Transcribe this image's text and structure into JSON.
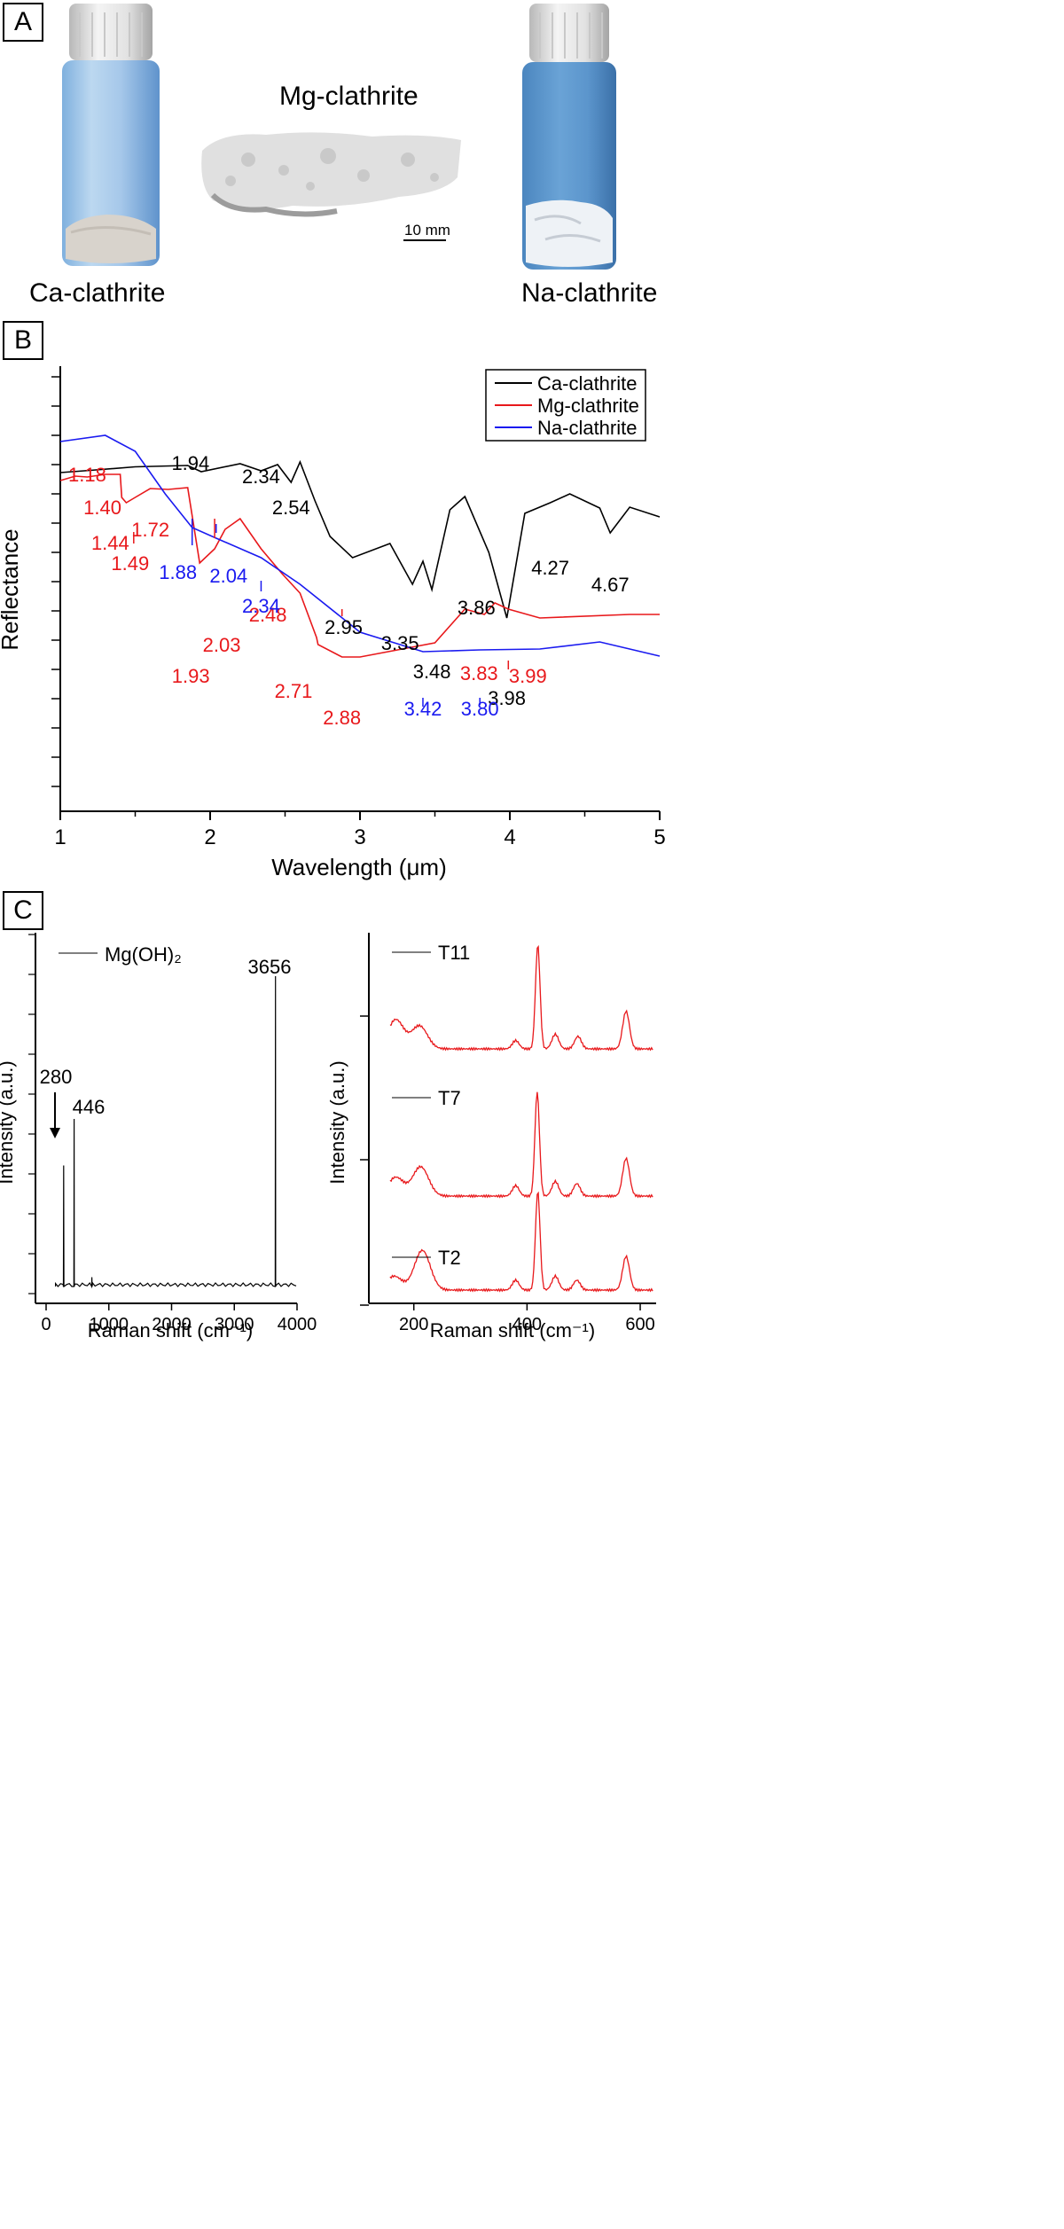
{
  "panels": {
    "a": "A",
    "b": "B",
    "c": "C"
  },
  "photos": {
    "ca_caption": "Ca-clathrite",
    "mg_caption": "Mg-clathrite",
    "na_caption": "Na-clathrite",
    "scale_bar": "10 mm"
  },
  "chart_data": [
    {
      "type": "line",
      "panel": "B",
      "xlabel": "Wavelength (μm)",
      "ylabel": "Reflectance",
      "xlim": [
        1,
        5
      ],
      "xticks": [
        "1",
        "2",
        "3",
        "4",
        "5"
      ],
      "legend": {
        "placement": "top-right",
        "entries": [
          "Ca-clathrite",
          "Mg-clathrite",
          "Na-clathrite"
        ]
      },
      "colors": {
        "Ca-clathrite": "#000000",
        "Mg-clathrite": "#e8181b",
        "Na-clathrite": "#1a1af0"
      },
      "series": [
        {
          "name": "Ca-clathrite",
          "x": [
            1.0,
            1.2,
            1.5,
            1.85,
            1.94,
            2.2,
            2.34,
            2.45,
            2.54,
            2.6,
            2.7,
            2.8,
            2.95,
            3.2,
            3.35,
            3.42,
            3.48,
            3.6,
            3.7,
            3.86,
            3.98,
            4.1,
            4.27,
            4.4,
            4.6,
            4.67,
            4.8,
            5.0
          ],
          "y": [
            0.62,
            0.645,
            0.685,
            0.7,
            0.63,
            0.72,
            0.64,
            0.71,
            0.51,
            0.74,
            0.3,
            -0.1,
            -0.34,
            -0.18,
            -0.64,
            -0.38,
            -0.7,
            0.2,
            0.35,
            -0.28,
            -1.02,
            0.16,
            0.28,
            0.38,
            0.22,
            -0.06,
            0.23,
            0.12
          ]
        },
        {
          "name": "Mg-clathrite",
          "x": [
            1.0,
            1.1,
            1.18,
            1.3,
            1.4,
            1.41,
            1.44,
            1.49,
            1.6,
            1.72,
            1.85,
            1.93,
            2.03,
            2.1,
            2.2,
            2.34,
            2.48,
            2.6,
            2.71,
            2.72,
            2.88,
            3.0,
            3.5,
            3.7,
            3.83,
            3.9,
            3.99,
            4.2,
            4.8,
            5.0
          ],
          "y": [
            0.53,
            0.58,
            0.57,
            0.6,
            0.6,
            0.34,
            0.28,
            0.33,
            0.44,
            0.43,
            0.45,
            -0.4,
            -0.24,
            -0.02,
            0.1,
            -0.24,
            -0.52,
            -0.74,
            -1.24,
            -1.32,
            -1.46,
            -1.46,
            -1.3,
            -0.92,
            -0.98,
            -0.85,
            -0.92,
            -1.02,
            -0.98,
            -0.98
          ]
        },
        {
          "name": "Na-clathrite",
          "x": [
            1.0,
            1.3,
            1.5,
            1.7,
            1.88,
            2.04,
            2.34,
            2.6,
            3.0,
            3.42,
            3.8,
            4.2,
            4.6,
            4.8,
            5.0
          ],
          "y": [
            0.97,
            1.04,
            0.86,
            0.38,
            0.0,
            -0.12,
            -0.34,
            -0.64,
            -1.18,
            -1.4,
            -1.38,
            -1.37,
            -1.29,
            -1.37,
            -1.45
          ]
        }
      ],
      "annotations": [
        {
          "text": "1.94",
          "series": "Ca-clathrite"
        },
        {
          "text": "2.34",
          "series": "Ca-clathrite"
        },
        {
          "text": "2.54",
          "series": "Ca-clathrite"
        },
        {
          "text": "2.95",
          "series": "Ca-clathrite"
        },
        {
          "text": "3.35",
          "series": "Ca-clathrite"
        },
        {
          "text": "3.48",
          "series": "Ca-clathrite"
        },
        {
          "text": "3.86",
          "series": "Ca-clathrite"
        },
        {
          "text": "3.98",
          "series": "Ca-clathrite"
        },
        {
          "text": "4.27",
          "series": "Ca-clathrite"
        },
        {
          "text": "4.67",
          "series": "Ca-clathrite"
        },
        {
          "text": "1.18",
          "series": "Mg-clathrite"
        },
        {
          "text": "1.40",
          "series": "Mg-clathrite"
        },
        {
          "text": "1.44",
          "series": "Mg-clathrite"
        },
        {
          "text": "1.49",
          "series": "Mg-clathrite"
        },
        {
          "text": "1.72",
          "series": "Mg-clathrite"
        },
        {
          "text": "1.93",
          "series": "Mg-clathrite"
        },
        {
          "text": "2.03",
          "series": "Mg-clathrite"
        },
        {
          "text": "2.48",
          "series": "Mg-clathrite"
        },
        {
          "text": "2.71",
          "series": "Mg-clathrite"
        },
        {
          "text": "2.88",
          "series": "Mg-clathrite"
        },
        {
          "text": "3.83",
          "series": "Mg-clathrite"
        },
        {
          "text": "3.99",
          "series": "Mg-clathrite"
        },
        {
          "text": "1.88",
          "series": "Na-clathrite"
        },
        {
          "text": "2.04",
          "series": "Na-clathrite"
        },
        {
          "text": "2.34",
          "series": "Na-clathrite"
        },
        {
          "text": "3.42",
          "series": "Na-clathrite"
        },
        {
          "text": "3.80",
          "series": "Na-clathrite"
        }
      ]
    },
    {
      "type": "line",
      "panel": "C-left",
      "xlabel": "Raman shift (cm⁻¹)",
      "ylabel": "Intensity (a.u.)",
      "xlim": [
        0,
        4000
      ],
      "xticks": [
        "0",
        "1000",
        "2000",
        "3000",
        "4000"
      ],
      "legend": {
        "placement": "top-left",
        "entries": [
          "Mg(OH)₂"
        ]
      },
      "series": [
        {
          "name": "Mg(OH)₂",
          "peaks": [
            {
              "x": 280,
              "height": 0.39
            },
            {
              "x": 446,
              "height": 0.54
            },
            {
              "x": 730,
              "height": 0.03
            },
            {
              "x": 3656,
              "height": 1.0
            }
          ]
        }
      ],
      "annotations": [
        "280",
        "446",
        "3656"
      ]
    },
    {
      "type": "line",
      "panel": "C-right",
      "xlabel": "Raman shift (cm⁻¹)",
      "ylabel": "Intensity (a.u.)",
      "xlim": [
        155,
        625
      ],
      "xticks": [
        "200",
        "400",
        "600"
      ],
      "legend": {
        "placement": "left",
        "entries": [
          "T11",
          "T7",
          "T2"
        ]
      },
      "series_color": "#e8181b",
      "series": [
        {
          "name": "T11",
          "peaks": [
            {
              "x": 168,
              "h": 0.28
            },
            {
              "x": 210,
              "h": 0.22
            },
            {
              "x": 380,
              "h": 0.08
            },
            {
              "x": 419,
              "h": 1.0
            },
            {
              "x": 450,
              "h": 0.14
            },
            {
              "x": 490,
              "h": 0.12
            },
            {
              "x": 575,
              "h": 0.36
            }
          ]
        },
        {
          "name": "T7",
          "peaks": [
            {
              "x": 168,
              "h": 0.18
            },
            {
              "x": 212,
              "h": 0.28
            },
            {
              "x": 380,
              "h": 0.1
            },
            {
              "x": 418,
              "h": 1.0
            },
            {
              "x": 450,
              "h": 0.14
            },
            {
              "x": 488,
              "h": 0.12
            },
            {
              "x": 575,
              "h": 0.36
            }
          ]
        },
        {
          "name": "T2",
          "peaks": [
            {
              "x": 165,
              "h": 0.14
            },
            {
              "x": 215,
              "h": 0.4
            },
            {
              "x": 380,
              "h": 0.1
            },
            {
              "x": 419,
              "h": 1.0
            },
            {
              "x": 450,
              "h": 0.14
            },
            {
              "x": 488,
              "h": 0.1
            },
            {
              "x": 575,
              "h": 0.34
            }
          ]
        }
      ]
    }
  ]
}
